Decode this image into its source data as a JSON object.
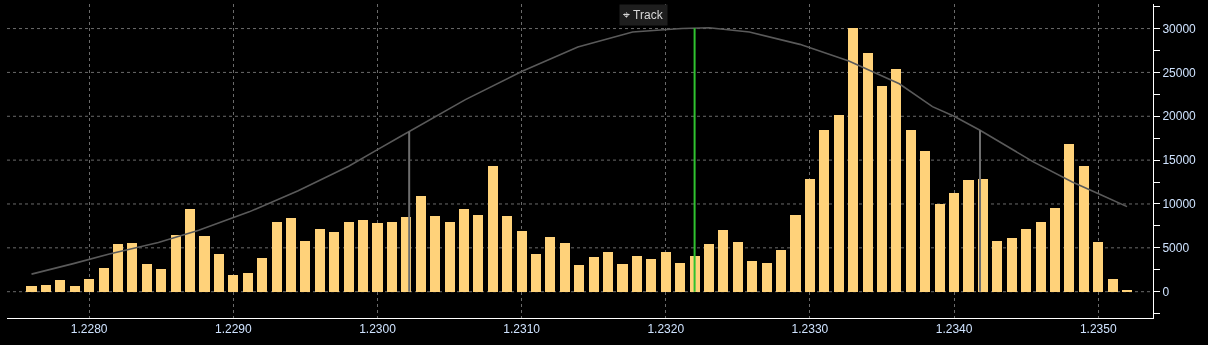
{
  "chart_data": {
    "type": "bar",
    "x": [
      1.2276,
      1.2277,
      1.2278,
      1.2279,
      1.228,
      1.2281,
      1.2282,
      1.2283,
      1.2284,
      1.2285,
      1.2286,
      1.2287,
      1.2288,
      1.2289,
      1.229,
      1.2291,
      1.2292,
      1.2293,
      1.2294,
      1.2295,
      1.2296,
      1.2297,
      1.2298,
      1.2299,
      1.23,
      1.2301,
      1.2302,
      1.2303,
      1.2304,
      1.2305,
      1.2306,
      1.2307,
      1.2308,
      1.2309,
      1.231,
      1.2311,
      1.2312,
      1.2313,
      1.2314,
      1.2315,
      1.2316,
      1.2317,
      1.2318,
      1.2319,
      1.232,
      1.2321,
      1.2322,
      1.2323,
      1.2324,
      1.2325,
      1.2326,
      1.2327,
      1.2328,
      1.2329,
      1.233,
      1.2331,
      1.2332,
      1.2333,
      1.2334,
      1.2335,
      1.2336,
      1.2337,
      1.2338,
      1.2339,
      1.234,
      1.2341,
      1.2342,
      1.2343,
      1.2344,
      1.2345,
      1.2346,
      1.2347,
      1.2348,
      1.2349,
      1.235,
      1.2351,
      1.2352
    ],
    "series": [
      {
        "color": "#ffd27a",
        "values": [
          700,
          800,
          1300,
          700,
          1400,
          2700,
          5400,
          5500,
          3200,
          2600,
          6500,
          9400,
          6400,
          4300,
          1900,
          2100,
          3800,
          7900,
          8400,
          5800,
          7100,
          6800,
          8000,
          8200,
          7800,
          8000,
          8500,
          10900,
          8600,
          7900,
          9400,
          8700,
          14300,
          8600,
          6900,
          4300,
          6200,
          5500,
          3100,
          3900,
          4500,
          3200,
          4100,
          3700,
          4500,
          3300,
          4100,
          5400,
          7000,
          5700,
          3500,
          3300,
          4800,
          8700,
          12800,
          18400,
          20100,
          30100,
          27200,
          23500,
          25400,
          18400,
          16000,
          10000,
          11200,
          12700,
          12900,
          5800,
          6100,
          7200,
          8000,
          9500,
          16800,
          14300,
          5700,
          1500,
          100
        ]
      },
      {
        "type": "line",
        "color": "#5a5a5a",
        "marker": "none",
        "line_style": "solid",
        "x": [
          1.2276,
          1.22789,
          1.22814,
          1.22848,
          1.22876,
          1.22911,
          1.22945,
          1.2298,
          1.23,
          1.23015,
          1.23061,
          1.231,
          1.23139,
          1.23177,
          1.23211,
          1.2323,
          1.23258,
          1.23293,
          1.23327,
          1.23362,
          1.23385,
          1.234,
          1.23418,
          1.23455,
          1.23482,
          1.23501,
          1.2352
        ],
        "values": [
          2000,
          3200,
          4300,
          5600,
          7000,
          9100,
          11500,
          14300,
          16200,
          17600,
          21900,
          25100,
          27900,
          29600,
          30000,
          30100,
          29600,
          28200,
          26300,
          23700,
          21100,
          20000,
          18400,
          14800,
          12500,
          11100,
          9700
        ]
      }
    ],
    "xlim": [
      1.22743,
      1.23538
    ],
    "xticks": [
      {
        "value": 1.228,
        "label": "1.2280"
      },
      {
        "value": 1.229,
        "label": "1.2290"
      },
      {
        "value": 1.23,
        "label": "1.2300"
      },
      {
        "value": 1.231,
        "label": "1.2310"
      },
      {
        "value": 1.232,
        "label": "1.2320"
      },
      {
        "value": 1.233,
        "label": "1.2330"
      },
      {
        "value": 1.234,
        "label": "1.2340"
      },
      {
        "value": 1.235,
        "label": "1.2350"
      }
    ],
    "ylim": [
      -3000,
      32800
    ],
    "yticks": [
      {
        "value": -2500,
        "label": null
      },
      0,
      {
        "value": 2500,
        "label": null
      },
      5000,
      {
        "value": 7500,
        "label": null
      },
      10000,
      {
        "value": 12500,
        "label": null
      },
      15000,
      {
        "value": 17500,
        "label": null
      },
      20000,
      {
        "value": 22500,
        "label": null
      },
      25000,
      {
        "value": 27500,
        "label": null
      },
      30000,
      {
        "value": 32500,
        "label": null
      }
    ],
    "grid": true,
    "ref_lines": [
      {
        "axis": "x",
        "value": 1.23022,
        "color": "#6e6e6e",
        "line_style": "solid"
      },
      {
        "axis": "x",
        "value": 1.2322,
        "color": "#2fc22f",
        "line_style": "solid"
      },
      {
        "axis": "x",
        "value": 1.23418,
        "color": "#6e6e6e",
        "line_style": "solid"
      }
    ],
    "annotations": [
      "⌖ Track"
    ]
  }
}
